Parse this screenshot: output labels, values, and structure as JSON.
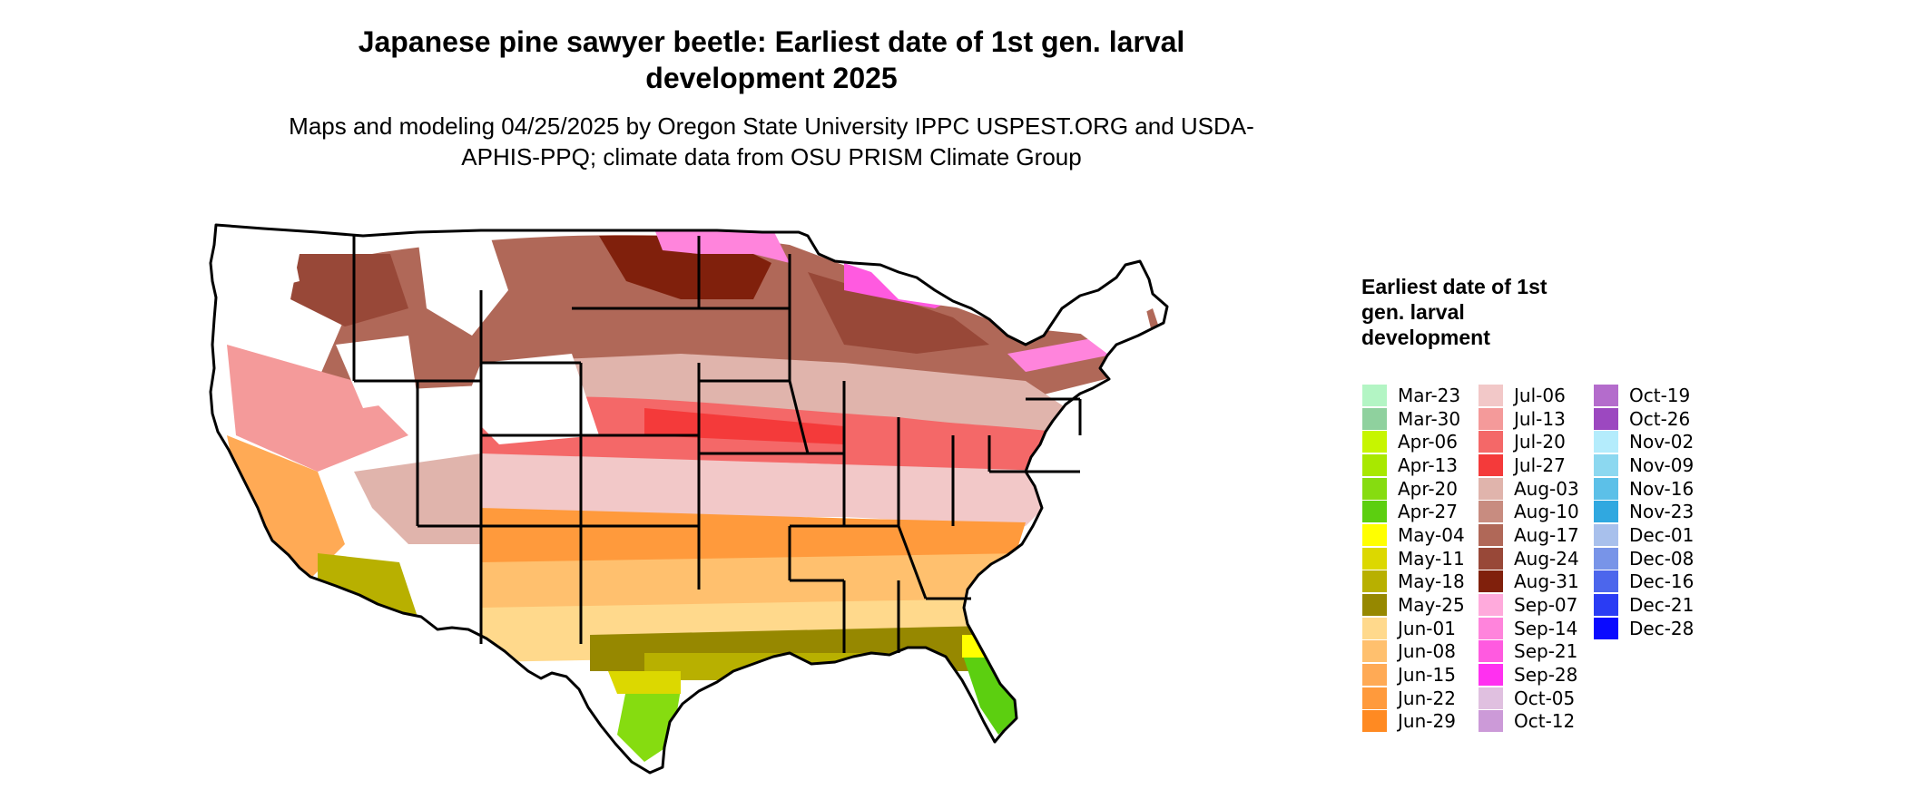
{
  "title": "Japanese pine sawyer beetle: Earliest date of 1st gen. larval development 2025",
  "subtitle": "Maps and modeling 04/25/2025 by Oregon State University IPPC USPEST.ORG and USDA-APHIS-PPQ; climate data from OSU PRISM Climate Group",
  "map": {
    "region": "Contiguous United States",
    "colors": {
      "state_border": "#000000",
      "no_development": "#ffffff"
    }
  },
  "legend": {
    "title": "Earliest date of 1st gen. larval development",
    "columns": [
      [
        {
          "label": "Mar-23",
          "color": "#b3f5c4"
        },
        {
          "label": "Mar-30",
          "color": "#8fd19e"
        },
        {
          "label": "Apr-06",
          "color": "#c7f500"
        },
        {
          "label": "Apr-13",
          "color": "#a8e800"
        },
        {
          "label": "Apr-20",
          "color": "#86dc10"
        },
        {
          "label": "Apr-27",
          "color": "#5ccf10"
        },
        {
          "label": "May-04",
          "color": "#ffff00"
        },
        {
          "label": "May-11",
          "color": "#dcd800"
        },
        {
          "label": "May-18",
          "color": "#b8b000"
        },
        {
          "label": "May-25",
          "color": "#968800"
        },
        {
          "label": "Jun-01",
          "color": "#ffd98c"
        },
        {
          "label": "Jun-08",
          "color": "#ffc06e"
        },
        {
          "label": "Jun-15",
          "color": "#ffaa55"
        },
        {
          "label": "Jun-22",
          "color": "#ff9a3c"
        },
        {
          "label": "Jun-29",
          "color": "#ff8a22"
        }
      ],
      [
        {
          "label": "Jul-06",
          "color": "#f2c8c8"
        },
        {
          "label": "Jul-13",
          "color": "#f49a9a"
        },
        {
          "label": "Jul-20",
          "color": "#f46868"
        },
        {
          "label": "Jul-27",
          "color": "#f43a3a"
        },
        {
          "label": "Aug-03",
          "color": "#e0b4ac"
        },
        {
          "label": "Aug-10",
          "color": "#c88c80"
        },
        {
          "label": "Aug-17",
          "color": "#b06858"
        },
        {
          "label": "Aug-24",
          "color": "#984838"
        },
        {
          "label": "Aug-31",
          "color": "#80200c"
        },
        {
          "label": "Sep-07",
          "color": "#ffaadc"
        },
        {
          "label": "Sep-14",
          "color": "#ff84dc"
        },
        {
          "label": "Sep-21",
          "color": "#ff5ae0"
        },
        {
          "label": "Sep-28",
          "color": "#ff30f0"
        },
        {
          "label": "Oct-05",
          "color": "#e0c0e0"
        },
        {
          "label": "Oct-12",
          "color": "#cc9ad8"
        }
      ],
      [
        {
          "label": "Oct-19",
          "color": "#b46ccc"
        },
        {
          "label": "Oct-26",
          "color": "#9c48c0"
        },
        {
          "label": "Nov-02",
          "color": "#b4ecfc"
        },
        {
          "label": "Nov-09",
          "color": "#8cd8f0"
        },
        {
          "label": "Nov-16",
          "color": "#5cc0e8"
        },
        {
          "label": "Nov-23",
          "color": "#30a8e0"
        },
        {
          "label": "Dec-01",
          "color": "#a8c0ec"
        },
        {
          "label": "Dec-08",
          "color": "#7894e8"
        },
        {
          "label": "Dec-16",
          "color": "#4c66ec"
        },
        {
          "label": "Dec-21",
          "color": "#2a3cf4"
        },
        {
          "label": "Dec-28",
          "color": "#0a0aff"
        }
      ]
    ]
  }
}
